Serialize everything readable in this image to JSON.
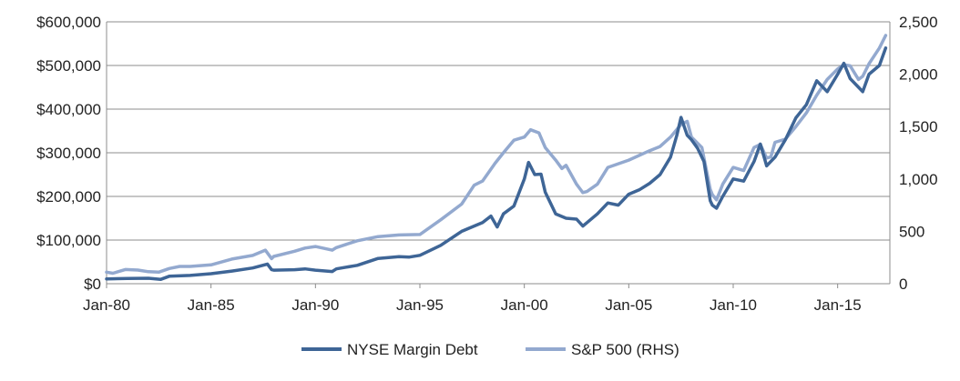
{
  "chart_data": {
    "type": "line",
    "title": "",
    "xlabel": "",
    "ylabel": "",
    "x_tick_labels": [
      "Jan-80",
      "Jan-85",
      "Jan-90",
      "Jan-95",
      "Jan-00",
      "Jan-05",
      "Jan-10",
      "Jan-15"
    ],
    "x_range": [
      1980.0,
      2017.5
    ],
    "y_left": {
      "ylim": [
        0,
        600000
      ],
      "tick_values": [
        0,
        100000,
        200000,
        300000,
        400000,
        500000,
        600000
      ],
      "tick_labels": [
        "$0",
        "$100,000",
        "$200,000",
        "$300,000",
        "$400,000",
        "$500,000",
        "$600,000"
      ]
    },
    "y_right": {
      "ylim": [
        0,
        2500
      ],
      "tick_values": [
        0,
        500,
        1000,
        1500,
        2000,
        2500
      ],
      "tick_labels": [
        "0",
        "500",
        "1,000",
        "1,500",
        "2,000",
        "2,500"
      ]
    },
    "grid": true,
    "legend_position": "bottom",
    "series": [
      {
        "name": "NYSE Margin Debt",
        "axis": "left",
        "color": "#3E6596",
        "x": [
          1980.0,
          1981.0,
          1982.0,
          1982.6,
          1983.0,
          1984.0,
          1985.0,
          1986.0,
          1987.0,
          1987.7,
          1987.9,
          1988.0,
          1989.0,
          1989.5,
          1990.0,
          1990.8,
          1991.0,
          1992.0,
          1993.0,
          1994.0,
          1994.5,
          1995.0,
          1996.0,
          1997.0,
          1998.0,
          1998.4,
          1998.7,
          1999.0,
          1999.5,
          2000.0,
          2000.2,
          2000.5,
          2000.8,
          2001.0,
          2001.5,
          2002.0,
          2002.5,
          2002.8,
          2003.0,
          2003.5,
          2004.0,
          2004.5,
          2005.0,
          2005.5,
          2006.0,
          2006.5,
          2007.0,
          2007.3,
          2007.5,
          2007.8,
          2008.0,
          2008.3,
          2008.6,
          2008.9,
          2009.0,
          2009.2,
          2009.5,
          2010.0,
          2010.5,
          2011.0,
          2011.3,
          2011.6,
          2011.8,
          2012.0,
          2012.5,
          2013.0,
          2013.5,
          2014.0,
          2014.5,
          2015.0,
          2015.3,
          2015.6,
          2016.0,
          2016.2,
          2016.5,
          2017.0,
          2017.3
        ],
        "values": [
          11000,
          12000,
          12500,
          10000,
          17000,
          19000,
          23000,
          29000,
          36000,
          45000,
          32000,
          31000,
          32000,
          34000,
          31000,
          28000,
          34000,
          42000,
          58000,
          62000,
          61000,
          65000,
          88000,
          120000,
          140000,
          155000,
          130000,
          160000,
          178000,
          240000,
          278000,
          250000,
          251000,
          210000,
          160000,
          150000,
          148000,
          132000,
          140000,
          160000,
          185000,
          180000,
          205000,
          215000,
          230000,
          250000,
          290000,
          340000,
          381000,
          340000,
          330000,
          310000,
          280000,
          190000,
          180000,
          173000,
          200000,
          240000,
          235000,
          280000,
          320000,
          270000,
          280000,
          290000,
          330000,
          380000,
          410000,
          465000,
          440000,
          480000,
          505000,
          470000,
          450000,
          440000,
          480000,
          500000,
          540000
        ]
      },
      {
        "name": "S&P 500 (RHS)",
        "axis": "right",
        "color": "#93A9CF",
        "x": [
          1980.0,
          1980.3,
          1980.9,
          1981.5,
          1982.0,
          1982.5,
          1983.0,
          1983.5,
          1984.0,
          1985.0,
          1986.0,
          1987.0,
          1987.6,
          1987.9,
          1988.0,
          1989.0,
          1989.5,
          1990.0,
          1990.8,
          1991.0,
          1992.0,
          1993.0,
          1994.0,
          1995.0,
          1996.0,
          1997.0,
          1997.6,
          1998.0,
          1998.6,
          1999.0,
          1999.5,
          2000.0,
          2000.3,
          2000.7,
          2001.0,
          2001.5,
          2001.8,
          2002.0,
          2002.5,
          2002.8,
          2003.0,
          2003.5,
          2004.0,
          2005.0,
          2006.0,
          2006.5,
          2007.0,
          2007.5,
          2007.8,
          2008.0,
          2008.5,
          2008.9,
          2009.0,
          2009.2,
          2009.5,
          2010.0,
          2010.5,
          2011.0,
          2011.3,
          2011.6,
          2011.8,
          2012.0,
          2012.5,
          2013.0,
          2013.5,
          2014.0,
          2014.5,
          2015.0,
          2015.3,
          2015.6,
          2016.0,
          2016.2,
          2016.5,
          2017.0,
          2017.3
        ],
        "values": [
          110,
          100,
          135,
          130,
          115,
          110,
          145,
          165,
          165,
          180,
          235,
          270,
          320,
          240,
          260,
          310,
          340,
          355,
          320,
          345,
          410,
          450,
          465,
          470,
          610,
          760,
          940,
          980,
          1150,
          1250,
          1370,
          1400,
          1470,
          1440,
          1300,
          1180,
          1100,
          1130,
          950,
          870,
          880,
          950,
          1110,
          1180,
          1270,
          1310,
          1400,
          1520,
          1550,
          1400,
          1300,
          900,
          850,
          800,
          950,
          1110,
          1080,
          1300,
          1330,
          1200,
          1210,
          1350,
          1380,
          1500,
          1630,
          1800,
          1950,
          2050,
          2090,
          2080,
          1950,
          1980,
          2100,
          2250,
          2370
        ]
      }
    ]
  }
}
